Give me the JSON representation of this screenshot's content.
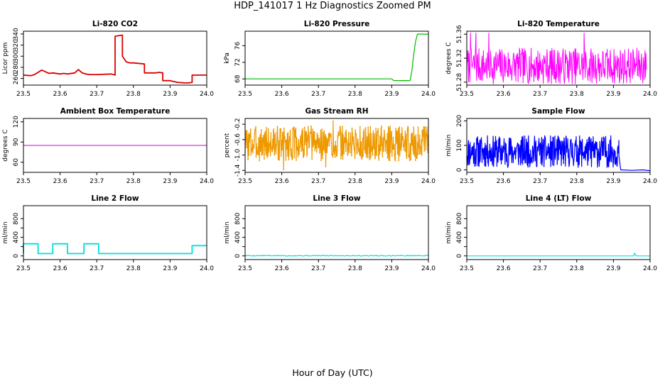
{
  "figure": {
    "title": "HDP_141017  1 Hz Diagnostics Zoomed PM",
    "xlabel": "Hour of Day (UTC)"
  },
  "chart_data": [
    {
      "id": "co2",
      "type": "line",
      "title": "Li-820 CO2",
      "ylabel": "Licor ppm",
      "color": "#dd0000",
      "xlim": [
        23.5,
        24.0
      ],
      "ylim": [
        248,
        345
      ],
      "xticks": [
        23.5,
        23.6,
        23.7,
        23.8,
        23.9,
        24.0
      ],
      "xtick_labels": [
        "23.5",
        "23.6",
        "23.7",
        "23.8",
        "23.9",
        "24.0"
      ],
      "yticks": [
        260,
        280,
        300,
        320,
        340
      ],
      "ytick_labels": [
        "260",
        "280",
        "300",
        "320",
        "340"
      ],
      "series": [
        {
          "name": "CO2",
          "x": [
            23.5,
            23.52,
            23.53,
            23.55,
            23.56,
            23.57,
            23.58,
            23.6,
            23.61,
            23.62,
            23.64,
            23.65,
            23.66,
            23.67,
            23.68,
            23.7,
            23.74,
            23.75,
            23.75,
            23.77,
            23.77,
            23.78,
            23.79,
            23.8,
            23.83,
            23.83,
            23.86,
            23.87,
            23.88,
            23.88,
            23.9,
            23.92,
            23.94,
            23.95,
            23.96,
            23.96,
            24.0
          ],
          "y": [
            266,
            265,
            267,
            275,
            272,
            269,
            270,
            268,
            269,
            268,
            270,
            276,
            270,
            268,
            267,
            267,
            268,
            266,
            336,
            338,
            300,
            290,
            288,
            288,
            286,
            270,
            270,
            271,
            270,
            256,
            256,
            253,
            252,
            252,
            253,
            266,
            266
          ]
        }
      ]
    },
    {
      "id": "pressure",
      "type": "line",
      "title": "Li-820 Pressure",
      "ylabel": "kPa",
      "color": "#00bb00",
      "xlim": [
        23.5,
        24.0
      ],
      "ylim": [
        66.5,
        79.5
      ],
      "xticks": [
        23.5,
        23.6,
        23.7,
        23.8,
        23.9,
        24.0
      ],
      "xtick_labels": [
        "23.5",
        "23.6",
        "23.7",
        "23.8",
        "23.9",
        "24.0"
      ],
      "yticks": [
        68,
        72,
        76
      ],
      "ytick_labels": [
        "68",
        "72",
        "76"
      ],
      "series": [
        {
          "name": "Pressure",
          "x": [
            23.5,
            23.6,
            23.7,
            23.8,
            23.9,
            23.905,
            23.95,
            23.955,
            23.96,
            23.965,
            23.97,
            24.0
          ],
          "y": [
            68.0,
            68.0,
            68.0,
            68.0,
            68.0,
            67.6,
            67.6,
            70.0,
            74.0,
            77.0,
            78.8,
            78.8
          ]
        }
      ]
    },
    {
      "id": "temp",
      "type": "line",
      "title": "Li-820 Temperature",
      "ylabel": "degrees C",
      "color": "#ff00ff",
      "xlim": [
        23.5,
        24.0
      ],
      "ylim": [
        51.275,
        51.365
      ],
      "xticks": [
        23.5,
        23.6,
        23.7,
        23.8,
        23.9,
        24.0
      ],
      "xtick_labels": [
        "23.5",
        "23.6",
        "23.7",
        "23.8",
        "23.9",
        "24.0"
      ],
      "yticks": [
        51.28,
        51.32,
        51.36
      ],
      "ytick_labels": [
        "51.28",
        "51.32",
        "51.36"
      ],
      "series": [
        {
          "name": "Temperature",
          "noise": {
            "x0": 23.5,
            "x1": 23.99,
            "n": 400,
            "lo": 51.277,
            "hi": 51.337,
            "seed": 7
          },
          "spikes": [
            {
              "x": 23.51,
              "y": 51.362
            },
            {
              "x": 23.525,
              "y": 51.362
            },
            {
              "x": 23.56,
              "y": 51.362
            },
            {
              "x": 23.82,
              "y": 51.362
            }
          ]
        }
      ]
    },
    {
      "id": "ambient",
      "type": "line",
      "title": "Ambient Box Temperature",
      "ylabel": "degrees C",
      "color": "#cc00cc",
      "xlim": [
        23.5,
        24.0
      ],
      "ylim": [
        45,
        125
      ],
      "xticks": [
        23.5,
        23.6,
        23.7,
        23.8,
        23.9,
        24.0
      ],
      "xtick_labels": [
        "23.5",
        "23.6",
        "23.7",
        "23.8",
        "23.9",
        "24.0"
      ],
      "yticks": [
        60,
        90,
        120
      ],
      "ytick_labels": [
        "60",
        "90",
        "120"
      ],
      "series": [
        {
          "name": "Ambient",
          "x": [
            23.5,
            24.0
          ],
          "y": [
            85,
            85
          ]
        }
      ]
    },
    {
      "id": "rh",
      "type": "scatter",
      "title": "Gas Stream RH",
      "ylabel": "percent",
      "color": "#ee9900",
      "xlim": [
        23.5,
        24.0
      ],
      "ylim": [
        -1.45,
        -0.05
      ],
      "xticks": [
        23.5,
        23.6,
        23.7,
        23.8,
        23.9,
        24.0
      ],
      "xtick_labels": [
        "23.5",
        "23.6",
        "23.7",
        "23.8",
        "23.9",
        "24.0"
      ],
      "yticks": [
        -1.4,
        -1.0,
        -0.6,
        -0.2
      ],
      "ytick_labels": [
        "-1.4",
        "-1.0",
        "-0.6",
        "-0.2"
      ],
      "series": [
        {
          "name": "RH",
          "noise": {
            "x0": 23.5,
            "x1": 24.0,
            "n": 500,
            "lo": -1.15,
            "hi": -0.25,
            "seed": 3
          },
          "spikes": [
            {
              "x": 23.605,
              "y": -1.38
            },
            {
              "x": 23.72,
              "y": -1.3
            },
            {
              "x": 23.74,
              "y": -0.12
            }
          ]
        }
      ]
    },
    {
      "id": "sample",
      "type": "line",
      "title": "Sample Flow",
      "ylabel": "ml/min",
      "color": "#0000ff",
      "xlim": [
        23.5,
        24.0
      ],
      "ylim": [
        -10,
        210
      ],
      "xticks": [
        23.5,
        23.6,
        23.7,
        23.8,
        23.9,
        24.0
      ],
      "xtick_labels": [
        "23.5",
        "23.6",
        "23.7",
        "23.8",
        "23.9",
        "24.0"
      ],
      "yticks": [
        0,
        100,
        200
      ],
      "ytick_labels": [
        "0",
        "100",
        "200"
      ],
      "series": [
        {
          "name": "Sample",
          "noise": {
            "x0": 23.5,
            "x1": 23.915,
            "n": 450,
            "lo": 10,
            "hi": 140,
            "seed": 11
          },
          "x": [
            23.915,
            23.92,
            23.95,
            23.98,
            24.0
          ],
          "y": [
            60,
            0,
            -2,
            0,
            -3
          ]
        }
      ]
    },
    {
      "id": "line2",
      "type": "line",
      "title": "Line 2 Flow",
      "ylabel": "ml/min",
      "color": "#00dddd",
      "xlim": [
        23.5,
        24.0
      ],
      "ylim": [
        -80,
        1080
      ],
      "xticks": [
        23.5,
        23.6,
        23.7,
        23.8,
        23.9,
        24.0
      ],
      "xtick_labels": [
        "23.5",
        "23.6",
        "23.7",
        "23.8",
        "23.9",
        "24.0"
      ],
      "yticks": [
        0,
        200,
        400,
        600,
        800
      ],
      "ytick_labels": [
        "0",
        "400",
        "800"
      ],
      "series": [
        {
          "name": "Line 2",
          "x": [
            23.5,
            23.5,
            23.54,
            23.54,
            23.58,
            23.58,
            23.62,
            23.62,
            23.665,
            23.665,
            23.705,
            23.705,
            23.96,
            23.96,
            24.0
          ],
          "y": [
            50,
            260,
            260,
            50,
            50,
            260,
            260,
            50,
            50,
            260,
            260,
            50,
            50,
            220,
            220
          ]
        }
      ]
    },
    {
      "id": "line3",
      "type": "line",
      "title": "Line 3 Flow",
      "ylabel": "ml/min",
      "color": "#00dddd",
      "xlim": [
        23.5,
        24.0
      ],
      "ylim": [
        -80,
        1080
      ],
      "xticks": [
        23.5,
        23.6,
        23.7,
        23.8,
        23.9,
        24.0
      ],
      "xtick_labels": [
        "23.5",
        "23.6",
        "23.7",
        "23.8",
        "23.9",
        "24.0"
      ],
      "yticks": [
        0,
        200,
        400,
        600,
        800
      ],
      "ytick_labels": [
        "0",
        "400",
        "800"
      ],
      "series": [
        {
          "name": "Line 3",
          "noise": {
            "x0": 23.5,
            "x1": 24.0,
            "n": 200,
            "lo": -5,
            "hi": 15,
            "seed": 5
          }
        }
      ]
    },
    {
      "id": "line4",
      "type": "line",
      "title": "Line 4 (LT) Flow",
      "ylabel": "ml/min",
      "color": "#00dddd",
      "xlim": [
        23.5,
        24.0
      ],
      "ylim": [
        -80,
        1080
      ],
      "xticks": [
        23.5,
        23.6,
        23.7,
        23.8,
        23.9,
        24.0
      ],
      "xtick_labels": [
        "23.5",
        "23.6",
        "23.7",
        "23.8",
        "23.9",
        "24.0"
      ],
      "yticks": [
        0,
        200,
        400,
        600,
        800
      ],
      "ytick_labels": [
        "0",
        "400",
        "800"
      ],
      "series": [
        {
          "name": "Line 4",
          "x": [
            23.5,
            23.955,
            23.958,
            23.961,
            23.964,
            24.0
          ],
          "y": [
            0,
            0,
            60,
            10,
            0,
            0
          ]
        }
      ]
    }
  ]
}
